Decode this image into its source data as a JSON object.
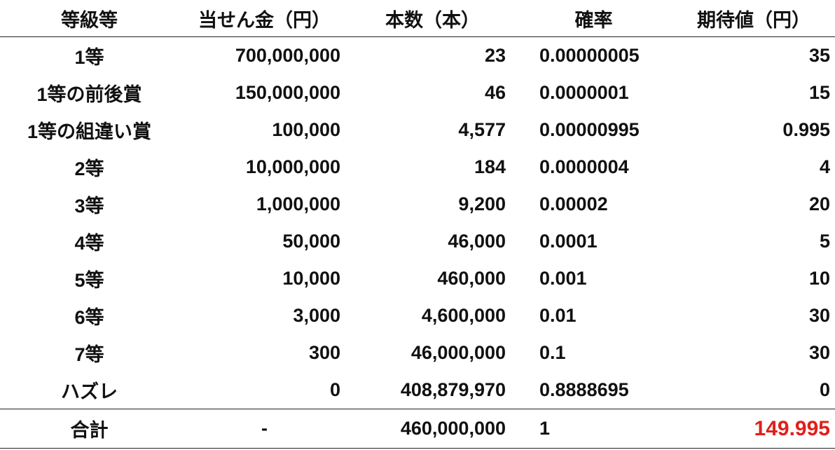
{
  "headers": [
    "等級等",
    "当せん金（円）",
    "本数（本）",
    "確率",
    "期待値（円）"
  ],
  "rows": [
    [
      "1等",
      "700,000,000",
      "23",
      "0.00000005",
      "35"
    ],
    [
      "1等の前後賞",
      "150,000,000",
      "46",
      "0.0000001",
      "15"
    ],
    [
      "1等の組違い賞",
      "100,000",
      "4,577",
      "0.00000995",
      "0.995"
    ],
    [
      "2等",
      "10,000,000",
      "184",
      "0.0000004",
      "4"
    ],
    [
      "3等",
      "1,000,000",
      "9,200",
      "0.00002",
      "20"
    ],
    [
      "4等",
      "50,000",
      "46,000",
      "0.0001",
      "5"
    ],
    [
      "5等",
      "10,000",
      "460,000",
      "0.001",
      "10"
    ],
    [
      "6等",
      "3,000",
      "4,600,000",
      "0.01",
      "30"
    ],
    [
      "7等",
      "300",
      "46,000,000",
      "0.1",
      "30"
    ],
    [
      "ハズレ",
      "0",
      "408,879,970",
      "0.8888695",
      "0"
    ]
  ],
  "total": [
    "合計",
    "-",
    "460,000,000",
    "1",
    "149.995"
  ],
  "colors": {
    "highlight": "#e0201b"
  }
}
